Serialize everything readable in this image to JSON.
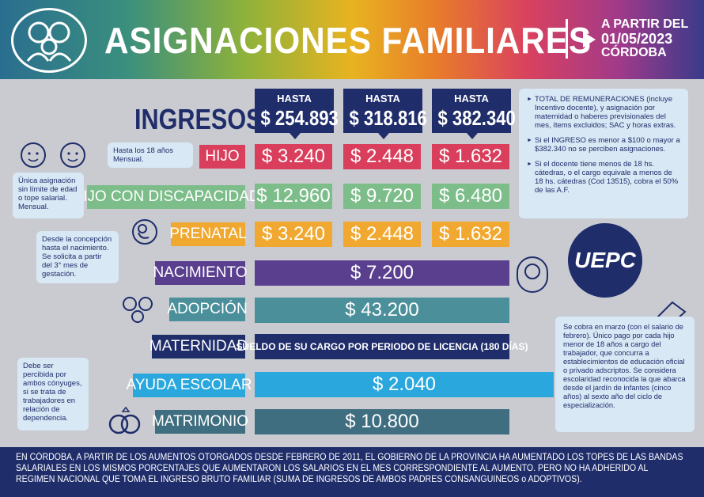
{
  "header": {
    "title": "ASIGNACIONES FAMILIARES",
    "date_line1": "A PARTIR DEL",
    "date_line2": "01/05/2023",
    "date_line3": "CÓRDOBA"
  },
  "ingresos_label": "INGRESOS:",
  "columns": [
    {
      "hasta": "HASTA",
      "amount": "$ 254.893"
    },
    {
      "hasta": "HASTA",
      "amount": "$ 318.816"
    },
    {
      "hasta": "HASTA",
      "amount": "$ 382.340"
    }
  ],
  "rows": {
    "hijo": {
      "label": "HIJO",
      "values": [
        "$ 3.240",
        "$ 2.448",
        "$ 1.632"
      ]
    },
    "hijo_disc": {
      "label": "HIJO CON DISCAPACIDAD",
      "values": [
        "$ 12.960",
        "$ 9.720",
        "$ 6.480"
      ]
    },
    "prenatal": {
      "label": "PRENATAL",
      "values": [
        "$ 3.240",
        "$ 2.448",
        "$ 1.632"
      ]
    },
    "nacimiento": {
      "label": "NACIMIENTO",
      "value": "$ 7.200"
    },
    "adopcion": {
      "label": "ADOPCIÓN",
      "value": "$ 43.200"
    },
    "maternidad": {
      "label": "MATERNIDAD",
      "value": "SUELDO DE SU CARGO POR PERIODO DE LICENCIA (180 DÍAS)"
    },
    "ayuda": {
      "label": "AYUDA ESCOLAR",
      "value": "$ 2.040"
    },
    "matrimonio": {
      "label": "MATRIMONIO",
      "value": "$ 10.800"
    }
  },
  "bubbles": {
    "hijo": "Hasta los 18 años Mensual.",
    "disc": "Única asignación sin límite de edad o tope salarial. Mensual.",
    "prenatal": "Desde la concepción hasta el nacimiento. Se solicita a partir del 3° mes de gestación.",
    "matrimonio": "Debe ser percibida por ambos cónyuges, si se trata de trabajadores en relación de dependencia."
  },
  "sidebox_top": [
    "TOTAL DE REMUNERACIONES (incluye Incentivo docente), y asignación por maternidad o haberes previsionales del mes, ítems excluidos; SAC y horas extras.",
    "Si el INGRESO es menor a $100 o mayor a $382.340 no se perciben asignaciones.",
    "Si el docente tiene menos de 18 hs. cátedras, o el cargo equivale a menos de 18 hs. cátedras (Cod 13515), cobra el 50% de las A.F."
  ],
  "sidebox_bottom": "Se cobra en marzo (con el salario de febrero). Único pago por cada hijo menor de 18 años a cargo del trabajador, que concurra a establecimientos de educación oficial o privado adscriptos. Se considera escolaridad reconocida la que abarca desde el jardín de infantes (cinco años) al sexto año del ciclo de especialización.",
  "uepc": "UEPC",
  "footer": "EN CÓRDOBA, A PARTIR DE LOS AUMENTOS OTORGADOS DESDE FEBRERO DE 2011, EL GOBIERNO DE LA PROVINCIA HA AUMENTADO LOS TOPES DE LAS BANDAS SALARIALES EN LOS MISMOS PORCENTAJES QUE AUMENTARON LOS SALARIOS EN EL MES CORRESPONDIENTE AL AUMENTO.  PERO NO HA ADHERIDO AL REGIMEN NACIONAL QUE TOMA EL INGRESO BRUTO FAMILIAR (SUMA DE INGRESOS DE AMBOS PADRES CONSANGUINEOS o ADOPTIVOS)."
}
